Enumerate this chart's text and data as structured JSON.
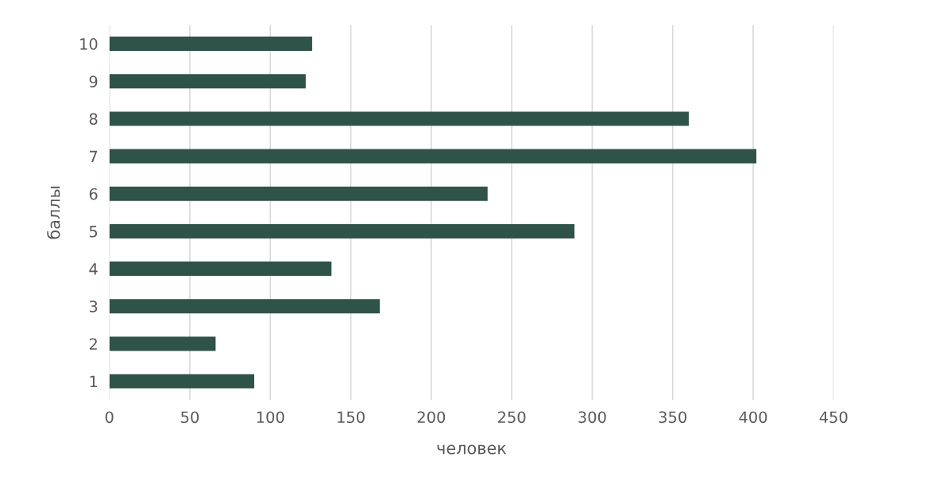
{
  "chart_data": {
    "type": "bar",
    "orientation": "horizontal",
    "xlabel": "человек",
    "ylabel": "баллы",
    "categories": [
      "10",
      "9",
      "8",
      "7",
      "6",
      "5",
      "4",
      "3",
      "2",
      "1"
    ],
    "values": [
      126,
      122,
      360,
      402,
      235,
      289,
      138,
      168,
      66,
      90
    ],
    "color": "#2e5349",
    "xlim": [
      0,
      450
    ],
    "xticks": [
      0,
      50,
      100,
      150,
      200,
      250,
      300,
      350,
      400,
      450
    ],
    "grid": "x",
    "legend": false
  }
}
